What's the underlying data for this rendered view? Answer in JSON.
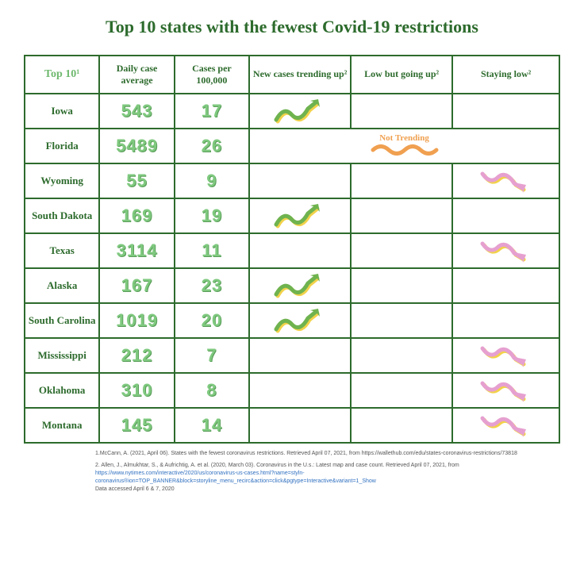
{
  "title": "Top 10 states with the fewest Covid-19 restrictions",
  "columns": {
    "top10": "Top 10¹",
    "daily_avg": "Daily case average",
    "per_100k": "Cases per 100,000",
    "trending_up": "New cases trending up²",
    "low_going_up": "Low but going up²",
    "staying_low": "Staying low²"
  },
  "not_trending_label": "Not Trending",
  "rows": [
    {
      "state": "Iowa",
      "daily_avg": "543",
      "per_100k": "17",
      "trend": "up"
    },
    {
      "state": "Florida",
      "daily_avg": "5489",
      "per_100k": "26",
      "trend": "flat"
    },
    {
      "state": "Wyoming",
      "daily_avg": "55",
      "per_100k": "9",
      "trend": "down"
    },
    {
      "state": "South Dakota",
      "daily_avg": "169",
      "per_100k": "19",
      "trend": "up"
    },
    {
      "state": "Texas",
      "daily_avg": "3114",
      "per_100k": "11",
      "trend": "down"
    },
    {
      "state": "Alaska",
      "daily_avg": "167",
      "per_100k": "23",
      "trend": "up"
    },
    {
      "state": "South Carolina",
      "daily_avg": "1019",
      "per_100k": "20",
      "trend": "up"
    },
    {
      "state": "Mississippi",
      "daily_avg": "212",
      "per_100k": "7",
      "trend": "down"
    },
    {
      "state": "Oklahoma",
      "daily_avg": "310",
      "per_100k": "8",
      "trend": "down"
    },
    {
      "state": "Montana",
      "daily_avg": "145",
      "per_100k": "14",
      "trend": "down"
    }
  ],
  "colors": {
    "border": "#2d6b2d",
    "title_text": "#2d6b2d",
    "number_fill": "#7fc97f",
    "state_text": "#2d6b2d",
    "up_arrow_main": "#6fb34f",
    "up_arrow_shadow": "#f2d24a",
    "down_arrow_main": "#e6a0d0",
    "down_arrow_shadow": "#f2d24a",
    "flat_wave": "#f0a050",
    "not_trending_text": "#f0a050",
    "background": "#ffffff"
  },
  "footnotes": {
    "note1": "1.McCann, A. (2021, April 06). States with the fewest coronavirus restrictions. Retrieved April 07, 2021, from https://wallethub.com/edu/states-coronavirus-restrictions/73818",
    "note2_prefix": "2. Allen, J., Almukhtar, S., & Aufrichtig, A. et al. (2020, March 03). Coronavirus in the U.s.: Latest map and case count. Retrieved April 07, 2021, from ",
    "note2_link": "https://www.nytimes.com/interactive/2020/us/coronavirus-us-cases.html?name=styln-coronavirus®ion=TOP_BANNER&block=storyline_menu_recirc&action=click&pgtype=Interactive&variant=1_Show",
    "accessed": "Data accessed April 6 & 7, 2020"
  }
}
